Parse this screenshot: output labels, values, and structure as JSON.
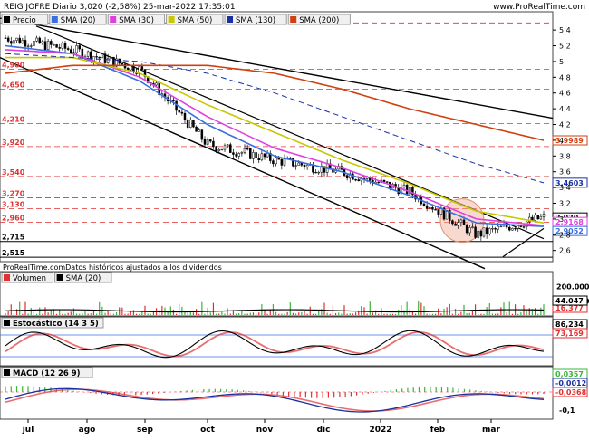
{
  "header": {
    "title": "REIG JOFRE Diario 3,020 (-2,58%) 25-mar-2022 17:35:01",
    "brand": "www.ProRealTime.com"
  },
  "price_panel": {
    "legend": [
      {
        "label": "Precio",
        "color": "#000000"
      },
      {
        "label": "SMA (20)",
        "color": "#3a6fe0"
      },
      {
        "label": "SMA (30)",
        "color": "#e040e0"
      },
      {
        "label": "SMA (50)",
        "color": "#c8c800"
      },
      {
        "label": "SMA (130)",
        "color": "#1a2fa0"
      },
      {
        "label": "SMA (200)",
        "color": "#d04010"
      }
    ],
    "footer_note": "ProRealTime.comDatos históricos ajustados a los dividendos",
    "axis_ticks": [
      "5,4",
      "5,2",
      "5",
      "4,8",
      "4,6",
      "4,4",
      "4,2",
      "4",
      "3,8",
      "3,6",
      "3,4",
      "3,2",
      "3",
      "2,8",
      "2,6"
    ],
    "tick_values": [
      5.4,
      5.2,
      5.0,
      4.8,
      4.6,
      4.4,
      4.2,
      4.0,
      3.8,
      3.6,
      3.4,
      3.2,
      3.0,
      2.8,
      2.6
    ],
    "left_levels": [
      {
        "label": "5,49",
        "value": 5.49,
        "style": "red"
      },
      {
        "label": "4,900",
        "value": 4.9,
        "style": "red"
      },
      {
        "label": "4,650",
        "value": 4.65,
        "style": "red"
      },
      {
        "label": "4,210",
        "value": 4.21,
        "style": "red"
      },
      {
        "label": "3,920",
        "value": 3.92,
        "style": "red"
      },
      {
        "label": "3,540",
        "value": 3.54,
        "style": "red"
      },
      {
        "label": "3,270",
        "value": 3.27,
        "style": "red"
      },
      {
        "label": "3,130",
        "value": 3.13,
        "style": "red"
      },
      {
        "label": "2,960",
        "value": 2.96,
        "style": "red"
      },
      {
        "label": "2,715",
        "value": 2.715,
        "style": "black"
      },
      {
        "label": "2,515",
        "value": 2.515,
        "style": "black"
      }
    ],
    "right_labels": [
      {
        "label": "3,9989",
        "value": 3.9989,
        "color": "#d04010"
      },
      {
        "label": "3,4603",
        "value": 3.4603,
        "color": "#1a2fa0"
      },
      {
        "label": "3,020",
        "value": 3.02,
        "color": "#000000"
      },
      {
        "label": "2,9168",
        "value": 2.9168,
        "color": "#e040e0"
      },
      {
        "label": "2,9052",
        "value": 2.9052,
        "color": "#3a6fe0"
      }
    ]
  },
  "x_axis": {
    "labels": [
      "jul",
      "ago",
      "sep",
      "oct",
      "nov",
      "dic",
      "2022",
      "feb",
      "mar"
    ],
    "positions": [
      31,
      96,
      160,
      229,
      292,
      357,
      420,
      483,
      542
    ]
  },
  "volume_panel": {
    "legend": [
      {
        "label": "Volumen",
        "color": "#e03030"
      },
      {
        "label": "SMA (20)",
        "color": "#000000"
      }
    ],
    "axis_ticks": [
      "200.000",
      "100.000"
    ],
    "tick_values": [
      200000,
      100000
    ],
    "right_labels": [
      {
        "label": "16.377",
        "value": 16377,
        "color": "#e03030"
      },
      {
        "label": "44.047",
        "value": 44047,
        "color": "#000000"
      }
    ]
  },
  "stochastic_panel": {
    "legend": [
      {
        "label": "Estocástico (14 3 5)",
        "color": "#000000"
      }
    ],
    "right_labels": [
      {
        "label": "86,234",
        "value": 86.234,
        "color": "#000000"
      },
      {
        "label": "73,169",
        "value": 73.169,
        "color": "#e03030"
      }
    ]
  },
  "macd_panel": {
    "legend": [
      {
        "label": "MACD (12 26 9)",
        "color": "#000000"
      }
    ],
    "axis_ticks": [
      "-0,1"
    ],
    "tick_values": [
      -0.1
    ],
    "right_labels": [
      {
        "label": "0,0357",
        "value": 0.0357,
        "color": "#3cb43c"
      },
      {
        "label": "-0,0012",
        "value": -0.0012,
        "color": "#1a2fa0"
      },
      {
        "label": "-0,0368",
        "value": -0.0368,
        "color": "#e03030"
      }
    ]
  },
  "chart_data": {
    "type": "line",
    "title": "REIG JOFRE Diario 3,020 (-2,58%) 25-mar-2022 17:35:01",
    "x": [
      "jul",
      "ago",
      "sep",
      "oct",
      "nov",
      "dic",
      "2022",
      "feb",
      "mar"
    ],
    "series": [
      {
        "name": "Precio",
        "values": [
          5.3,
          5.15,
          4.9,
          3.95,
          3.75,
          3.6,
          3.35,
          2.8,
          3.02
        ]
      },
      {
        "name": "SMA (20)",
        "values": [
          5.2,
          5.1,
          4.75,
          4.2,
          3.8,
          3.6,
          3.3,
          2.95,
          2.9052
        ]
      },
      {
        "name": "SMA (30)",
        "values": [
          5.15,
          5.1,
          4.8,
          4.3,
          3.9,
          3.65,
          3.35,
          3.0,
          2.9168
        ]
      },
      {
        "name": "SMA (50)",
        "values": [
          5.05,
          5.05,
          4.85,
          4.45,
          4.1,
          3.75,
          3.45,
          3.1,
          2.95
        ]
      },
      {
        "name": "SMA (130)",
        "values": [
          5.1,
          5.05,
          5.0,
          4.85,
          4.6,
          4.3,
          4.0,
          3.7,
          3.4603
        ]
      },
      {
        "name": "SMA (200)",
        "values": [
          4.85,
          4.95,
          4.95,
          4.95,
          4.85,
          4.65,
          4.4,
          4.2,
          3.9989
        ]
      }
    ],
    "ylim": [
      2.47,
      5.62
    ]
  }
}
